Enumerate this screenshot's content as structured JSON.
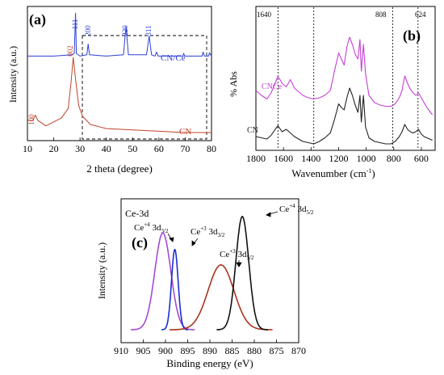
{
  "chart_data": [
    {
      "panel": "(a)",
      "type": "line",
      "xlabel": "2 theta (degree)",
      "ylabel": "Intensity (a.u.)",
      "xlim": [
        10,
        80
      ],
      "xticks": [
        "10",
        "20",
        "30",
        "40",
        "50",
        "60",
        "70",
        "80"
      ],
      "series": [
        {
          "name": "CN/Ce",
          "color": "#2b3fd6",
          "points": [
            [
              10,
              0.63
            ],
            [
              20,
              0.63
            ],
            [
              27,
              0.64
            ],
            [
              27.8,
              0.65
            ],
            [
              28.3,
              0.95
            ],
            [
              28.6,
              0.65
            ],
            [
              30,
              0.63
            ],
            [
              32.6,
              0.64
            ],
            [
              33.1,
              0.72
            ],
            [
              33.6,
              0.64
            ],
            [
              40,
              0.63
            ],
            [
              46.5,
              0.64
            ],
            [
              47.5,
              0.85
            ],
            [
              48.4,
              0.64
            ],
            [
              55.3,
              0.64
            ],
            [
              56.3,
              0.78
            ],
            [
              57.2,
              0.64
            ],
            [
              58.5,
              0.63
            ],
            [
              59.1,
              0.66
            ],
            [
              59.7,
              0.63
            ],
            [
              69.1,
              0.63
            ],
            [
              69.4,
              0.65
            ],
            [
              69.8,
              0.63
            ],
            [
              76.4,
              0.63
            ],
            [
              76.8,
              0.66
            ],
            [
              77.3,
              0.63
            ],
            [
              78.9,
              0.63
            ],
            [
              79.2,
              0.655
            ],
            [
              80,
              0.63
            ]
          ]
        },
        {
          "name": "CN",
          "color": "#c0432a",
          "points": [
            [
              10,
              0.15
            ],
            [
              12,
              0.15
            ],
            [
              13,
              0.19
            ],
            [
              14,
              0.15
            ],
            [
              17,
              0.11
            ],
            [
              20,
              0.14
            ],
            [
              23,
              0.17
            ],
            [
              25.5,
              0.24
            ],
            [
              26.6,
              0.44
            ],
            [
              27.4,
              0.62
            ],
            [
              28.3,
              0.46
            ],
            [
              29.5,
              0.26
            ],
            [
              31,
              0.18
            ],
            [
              34,
              0.12
            ],
            [
              40,
              0.09
            ],
            [
              50,
              0.08
            ],
            [
              60,
              0.07
            ],
            [
              70,
              0.06
            ],
            [
              80,
              0.06
            ]
          ]
        }
      ],
      "peak_labels": [
        {
          "text": "111",
          "x": 28.3,
          "series": "CN/Ce"
        },
        {
          "text": "200",
          "x": 33.1,
          "series": "CN/Ce"
        },
        {
          "text": "220",
          "x": 47.5,
          "series": "CN/Ce"
        },
        {
          "text": "311",
          "x": 56.3,
          "series": "CN/Ce"
        },
        {
          "text": "002",
          "x": 27.4,
          "series": "CN"
        },
        {
          "text": "100",
          "x": 13.0,
          "series": "CN"
        }
      ]
    },
    {
      "panel": "(b)",
      "type": "line",
      "xlabel": "Wavenumber (cm⁻¹)",
      "ylabel": "% Abs",
      "xlim": [
        1800,
        500
      ],
      "xticks": [
        "1800",
        "1600",
        "1400",
        "1200",
        "1000",
        "800",
        "600"
      ],
      "dashed_lines": [
        1640,
        1380,
        808,
        624
      ],
      "line_labels": [
        "1640",
        "808",
        "624"
      ],
      "series": [
        {
          "name": "CNCe",
          "color": "#c73fd8",
          "points": [
            [
              1800,
              0.44
            ],
            [
              1760,
              0.4
            ],
            [
              1720,
              0.37
            ],
            [
              1690,
              0.42
            ],
            [
              1660,
              0.5
            ],
            [
              1640,
              0.56
            ],
            [
              1610,
              0.5
            ],
            [
              1580,
              0.47
            ],
            [
              1550,
              0.53
            ],
            [
              1520,
              0.46
            ],
            [
              1490,
              0.43
            ],
            [
              1460,
              0.4
            ],
            [
              1420,
              0.38
            ],
            [
              1380,
              0.37
            ],
            [
              1340,
              0.38
            ],
            [
              1300,
              0.4
            ],
            [
              1260,
              0.44
            ],
            [
              1230,
              0.6
            ],
            [
              1200,
              0.75
            ],
            [
              1180,
              0.7
            ],
            [
              1160,
              0.65
            ],
            [
              1140,
              0.8
            ],
            [
              1120,
              0.88
            ],
            [
              1100,
              0.82
            ],
            [
              1080,
              0.74
            ],
            [
              1060,
              0.7
            ],
            [
              1045,
              0.86
            ],
            [
              1035,
              0.6
            ],
            [
              1020,
              0.82
            ],
            [
              1005,
              0.58
            ],
            [
              980,
              0.4
            ],
            [
              940,
              0.34
            ],
            [
              900,
              0.32
            ],
            [
              860,
              0.31
            ],
            [
              820,
              0.31
            ],
            [
              790,
              0.33
            ],
            [
              760,
              0.38
            ],
            [
              740,
              0.44
            ],
            [
              720,
              0.56
            ],
            [
              700,
              0.5
            ],
            [
              680,
              0.45
            ],
            [
              660,
              0.42
            ],
            [
              640,
              0.4
            ],
            [
              620,
              0.42
            ],
            [
              600,
              0.38
            ],
            [
              580,
              0.34
            ],
            [
              560,
              0.3
            ],
            [
              540,
              0.27
            ],
            [
              520,
              0.24
            ]
          ]
        },
        {
          "name": "CN",
          "color": "#222222",
          "points": [
            [
              1800,
              0.06
            ],
            [
              1760,
              0.05
            ],
            [
              1720,
              0.04
            ],
            [
              1690,
              0.07
            ],
            [
              1660,
              0.12
            ],
            [
              1640,
              0.15
            ],
            [
              1610,
              0.1
            ],
            [
              1580,
              0.12
            ],
            [
              1550,
              0.09
            ],
            [
              1520,
              0.06
            ],
            [
              1490,
              0.04
            ],
            [
              1460,
              0.02
            ],
            [
              1420,
              0.01
            ],
            [
              1380,
              0.0
            ],
            [
              1340,
              0.02
            ],
            [
              1300,
              0.05
            ],
            [
              1260,
              0.09
            ],
            [
              1230,
              0.2
            ],
            [
              1200,
              0.33
            ],
            [
              1180,
              0.3
            ],
            [
              1160,
              0.28
            ],
            [
              1140,
              0.38
            ],
            [
              1120,
              0.46
            ],
            [
              1100,
              0.4
            ],
            [
              1080,
              0.32
            ],
            [
              1060,
              0.26
            ],
            [
              1045,
              0.4
            ],
            [
              1035,
              0.18
            ],
            [
              1020,
              0.4
            ],
            [
              1005,
              0.14
            ],
            [
              980,
              0.05
            ],
            [
              940,
              0.02
            ],
            [
              900,
              0.01
            ],
            [
              860,
              0.0
            ],
            [
              820,
              0.0
            ],
            [
              790,
              0.02
            ],
            [
              760,
              0.06
            ],
            [
              740,
              0.1
            ],
            [
              720,
              0.16
            ],
            [
              700,
              0.12
            ],
            [
              680,
              0.1
            ],
            [
              660,
              0.09
            ],
            [
              640,
              0.1
            ],
            [
              620,
              0.12
            ],
            [
              600,
              0.08
            ],
            [
              580,
              0.06
            ],
            [
              560,
              0.05
            ],
            [
              540,
              0.04
            ],
            [
              520,
              0.03
            ]
          ]
        }
      ]
    },
    {
      "panel": "(c)",
      "type": "line",
      "title": "Ce-3d",
      "xlabel": "Binding energy (eV)",
      "ylabel": "Intensity (a.u.)",
      "xlim": [
        910,
        870
      ],
      "xticks": [
        "910",
        "905",
        "900",
        "895",
        "890",
        "885",
        "880",
        "875",
        "870"
      ],
      "series": [
        {
          "label": "Ce⁺⁴ 3d₃/₂",
          "color": "#a54ad6",
          "center": 900.6,
          "sigma": 1.8,
          "amp": 0.82
        },
        {
          "label": "Ce⁺³ 3d₃/₂",
          "color": "#1a2fd0",
          "center": 897.9,
          "sigma": 0.75,
          "amp": 0.68
        },
        {
          "label": "Ce⁺³ 3d₅/₂",
          "color": "#a8351e",
          "center": 887.5,
          "sigma": 2.9,
          "amp": 0.55
        },
        {
          "label": "Ce⁺⁴ 3d₅/₂",
          "color": "#111111",
          "center": 882.7,
          "sigma": 1.45,
          "amp": 0.96
        }
      ]
    }
  ],
  "labels": {
    "a": {
      "panel": "(a)",
      "title": "",
      "ylabel": "Intensity (a.u.)",
      "xlabel": "2 theta (degree)",
      "legend_cnce": "CN/Ce",
      "legend_cn": "CN",
      "xticks": [
        "10",
        "20",
        "30",
        "40",
        "50",
        "60",
        "70",
        "80"
      ],
      "p111": "111",
      "p200": "200",
      "p220": "220",
      "p311": "311",
      "p002": "002",
      "p100": "100"
    },
    "b": {
      "panel": "(b)",
      "ylabel": "% Abs",
      "xlabel_main": "Wavenumber (cm",
      "xlabel_sup": "-1",
      "xlabel_end": ")",
      "legend_cnce": "CNCe",
      "legend_cn": "CN",
      "l1640": "1640",
      "l808": "808",
      "l624": "624",
      "xticks": [
        "1800",
        "1600",
        "1400",
        "1200",
        "1000",
        "800",
        "600"
      ]
    },
    "c": {
      "panel": "(c)",
      "title": "Ce-3d",
      "ylabel": "Intensity (a.u.)",
      "xlabel": "Binding energy (eV)",
      "xticks": [
        "910",
        "905",
        "900",
        "895",
        "890",
        "885",
        "880",
        "875",
        "870"
      ],
      "l1": {
        "base": "Ce",
        "sup": "+4",
        "mid": " 3d",
        "sub": "3/2"
      },
      "l2": {
        "base": "Ce",
        "sup": "+3",
        "mid": " 3d",
        "sub": "3/2"
      },
      "l3": {
        "base": "Ce",
        "sup": "+3",
        "mid": " 3d",
        "sub": "5/2"
      },
      "l4": {
        "base": "Ce",
        "sup": "+4",
        "mid": " 3d",
        "sub": "5/2"
      }
    }
  }
}
